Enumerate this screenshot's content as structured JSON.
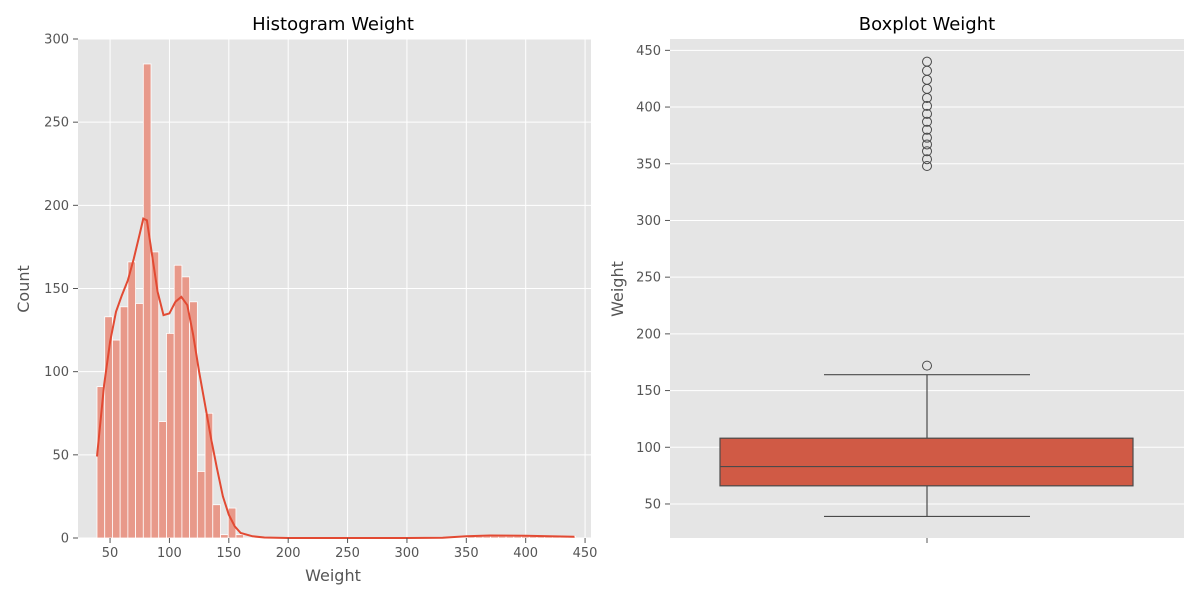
{
  "chart_data": [
    {
      "type": "histogram",
      "title": "Histogram Weight",
      "xlabel": "Weight",
      "ylabel": "Count",
      "xlim": [
        23,
        455
      ],
      "ylim": [
        0,
        300
      ],
      "xticks": [
        50,
        100,
        150,
        200,
        250,
        300,
        350,
        400,
        450
      ],
      "yticks": [
        0,
        50,
        100,
        150,
        200,
        250,
        300
      ],
      "grid": true,
      "bar_color": "#e8998a",
      "bar_edge": "#ffffff",
      "kde_color": "#e24a33",
      "bin_width": 6.5,
      "bins": [
        {
          "x0": 39.0,
          "count": 91
        },
        {
          "x0": 45.5,
          "count": 133
        },
        {
          "x0": 52.0,
          "count": 119
        },
        {
          "x0": 58.5,
          "count": 139
        },
        {
          "x0": 65.0,
          "count": 166
        },
        {
          "x0": 71.5,
          "count": 141
        },
        {
          "x0": 78.0,
          "count": 285
        },
        {
          "x0": 84.5,
          "count": 172
        },
        {
          "x0": 91.0,
          "count": 70
        },
        {
          "x0": 97.5,
          "count": 123
        },
        {
          "x0": 104.0,
          "count": 164
        },
        {
          "x0": 110.5,
          "count": 157
        },
        {
          "x0": 117.0,
          "count": 142
        },
        {
          "x0": 123.5,
          "count": 40
        },
        {
          "x0": 130.0,
          "count": 75
        },
        {
          "x0": 136.5,
          "count": 20
        },
        {
          "x0": 143.0,
          "count": 2
        },
        {
          "x0": 149.5,
          "count": 18
        },
        {
          "x0": 156.0,
          "count": 2
        },
        {
          "x0": 351.0,
          "count": 1
        },
        {
          "x0": 357.5,
          "count": 1
        },
        {
          "x0": 364.0,
          "count": 1
        },
        {
          "x0": 370.5,
          "count": 1
        },
        {
          "x0": 377.0,
          "count": 1
        },
        {
          "x0": 383.5,
          "count": 1
        },
        {
          "x0": 390.0,
          "count": 1
        },
        {
          "x0": 396.5,
          "count": 1
        },
        {
          "x0": 403.0,
          "count": 1
        },
        {
          "x0": 409.5,
          "count": 1
        },
        {
          "x0": 416.0,
          "count": 1
        },
        {
          "x0": 422.5,
          "count": 1
        },
        {
          "x0": 429.0,
          "count": 1
        },
        {
          "x0": 435.5,
          "count": 1
        }
      ],
      "kde": {
        "x": [
          39,
          45,
          50,
          55,
          60,
          65,
          70,
          75,
          78,
          81,
          85,
          90,
          95,
          100,
          105,
          110,
          115,
          120,
          125,
          130,
          135,
          140,
          145,
          150,
          155,
          160,
          170,
          180,
          200,
          250,
          300,
          330,
          350,
          370,
          400,
          420,
          441
        ],
        "y": [
          49,
          92,
          118,
          136,
          146,
          155,
          168,
          183,
          192,
          191,
          172,
          148,
          134,
          135,
          142,
          145,
          140,
          122,
          100,
          80,
          60,
          42,
          25,
          14,
          7,
          3,
          1,
          0.3,
          0,
          0,
          0,
          0.2,
          1,
          1.5,
          1.3,
          1.1,
          0.8
        ]
      }
    },
    {
      "type": "box",
      "title": "Boxplot Weight",
      "xlabel": "",
      "ylabel": "Weight",
      "ylim": [
        20,
        460
      ],
      "yticks": [
        50,
        100,
        150,
        200,
        250,
        300,
        350,
        400,
        450
      ],
      "grid": true,
      "box_color": "#d05a45",
      "line_color": "#4a4a4a",
      "whisker_low": 39,
      "q1": 66,
      "median": 83,
      "q3": 108,
      "whisker_high": 164,
      "outliers": [
        172,
        348,
        354,
        361,
        367,
        373,
        380,
        387,
        394,
        401,
        408,
        416,
        424,
        432,
        440
      ]
    }
  ]
}
